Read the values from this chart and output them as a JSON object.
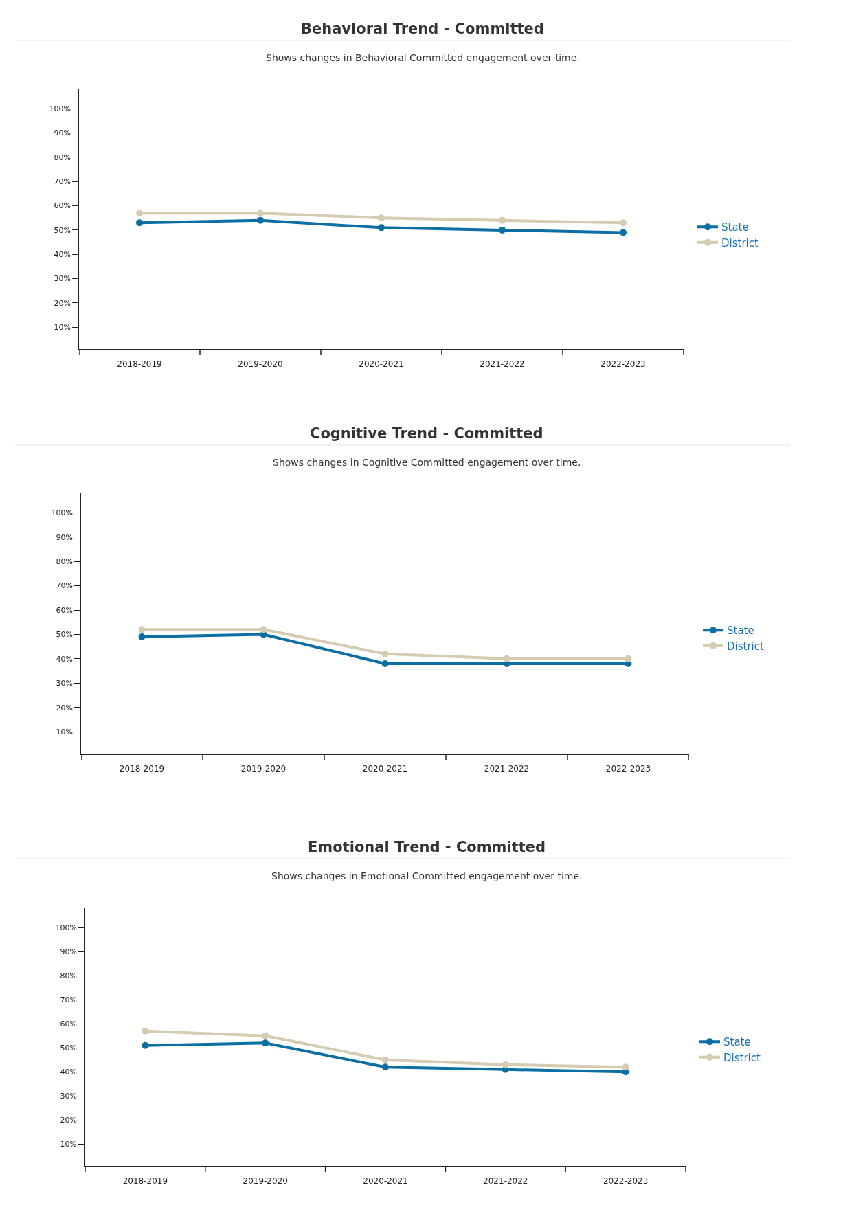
{
  "chart_data": [
    {
      "type": "line",
      "title": "Behavioral Trend - Committed",
      "subtitle": "Shows changes in Behavioral Committed engagement over time.",
      "categories": [
        "2018-2019",
        "2019-2020",
        "2020-2021",
        "2021-2022",
        "2022-2023"
      ],
      "series": [
        {
          "name": "State",
          "color": "#0b6fa4",
          "values": [
            53,
            54,
            51,
            50,
            49
          ]
        },
        {
          "name": "District",
          "color": "#d4cbb0",
          "values": [
            57,
            57,
            55,
            54,
            53
          ]
        }
      ],
      "ylim": [
        1,
        108
      ],
      "yticks": [
        {
          "value": 10,
          "label": "10%"
        },
        {
          "value": 20,
          "label": "20%"
        },
        {
          "value": 30,
          "label": "30%"
        },
        {
          "value": 40,
          "label": "40%"
        },
        {
          "value": 50,
          "label": "50%"
        },
        {
          "value": 60,
          "label": "60%"
        },
        {
          "value": 70,
          "label": "70%"
        },
        {
          "value": 80,
          "label": "80%"
        },
        {
          "value": 90,
          "label": "90%"
        },
        {
          "value": 100,
          "label": "100%"
        }
      ],
      "legend": "right",
      "marker": "circle"
    },
    {
      "type": "line",
      "title": "Cognitive Trend - Committed",
      "subtitle": "Shows changes in Cognitive Committed engagement over time.",
      "categories": [
        "2018-2019",
        "2019-2020",
        "2020-2021",
        "2021-2022",
        "2022-2023"
      ],
      "series": [
        {
          "name": "State",
          "color": "#0b6fa4",
          "values": [
            49,
            50,
            38,
            38,
            38
          ]
        },
        {
          "name": "District",
          "color": "#d4cbb0",
          "values": [
            52,
            52,
            42,
            40,
            40
          ]
        }
      ],
      "ylim": [
        1,
        108
      ],
      "yticks": [
        {
          "value": 10,
          "label": "10%"
        },
        {
          "value": 20,
          "label": "20%"
        },
        {
          "value": 30,
          "label": "30%"
        },
        {
          "value": 40,
          "label": "40%"
        },
        {
          "value": 50,
          "label": "50%"
        },
        {
          "value": 60,
          "label": "60%"
        },
        {
          "value": 70,
          "label": "70%"
        },
        {
          "value": 80,
          "label": "80%"
        },
        {
          "value": 90,
          "label": "90%"
        },
        {
          "value": 100,
          "label": "100%"
        }
      ],
      "legend": "right",
      "marker": "circle"
    },
    {
      "type": "line",
      "title": "Emotional Trend - Committed",
      "subtitle": "Shows changes in Emotional Committed engagement over time.",
      "categories": [
        "2018-2019",
        "2019-2020",
        "2020-2021",
        "2021-2022",
        "2022-2023"
      ],
      "series": [
        {
          "name": "State",
          "color": "#0b6fa4",
          "values": [
            51,
            52,
            42,
            41,
            40
          ]
        },
        {
          "name": "District",
          "color": "#d4cbb0",
          "values": [
            57,
            55,
            45,
            43,
            42
          ]
        }
      ],
      "ylim": [
        1,
        108
      ],
      "yticks": [
        {
          "value": 10,
          "label": "10%"
        },
        {
          "value": 20,
          "label": "20%"
        },
        {
          "value": 30,
          "label": "30%"
        },
        {
          "value": 40,
          "label": "40%"
        },
        {
          "value": 50,
          "label": "50%"
        },
        {
          "value": 60,
          "label": "60%"
        },
        {
          "value": 70,
          "label": "70%"
        },
        {
          "value": 80,
          "label": "80%"
        },
        {
          "value": 90,
          "label": "90%"
        },
        {
          "value": 100,
          "label": "100%"
        }
      ],
      "legend": "right",
      "marker": "circle"
    }
  ]
}
